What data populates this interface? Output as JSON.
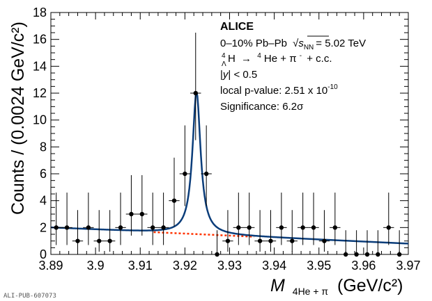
{
  "chart_data": {
    "type": "scatter",
    "xlabel_main": "M",
    "xlabel_sub": "4He + π",
    "xlabel_unit": "(GeV/c²)",
    "ylabel": "Counts / (0.0024 GeV/c²)",
    "xlim": [
      3.89,
      3.97
    ],
    "ylim": [
      0,
      18
    ],
    "x_ticks": [
      "3.89",
      "3.9",
      "3.91",
      "3.92",
      "3.93",
      "3.94",
      "3.95",
      "3.96",
      "3.97"
    ],
    "y_ticks": [
      "0",
      "2",
      "4",
      "6",
      "8",
      "10",
      "12",
      "14",
      "16",
      "18"
    ],
    "bin_half_width": 0.0012,
    "data_points": [
      {
        "x": 3.8912,
        "y": 2,
        "yerr_low": 1.3,
        "yerr_high": 2.6
      },
      {
        "x": 3.8936,
        "y": 2,
        "yerr_low": 1.3,
        "yerr_high": 2.6
      },
      {
        "x": 3.896,
        "y": 1,
        "yerr_low": 0.8,
        "yerr_high": 2.3
      },
      {
        "x": 3.8984,
        "y": 2,
        "yerr_low": 1.3,
        "yerr_high": 2.6
      },
      {
        "x": 3.9008,
        "y": 1,
        "yerr_low": 0.8,
        "yerr_high": 2.3
      },
      {
        "x": 3.9032,
        "y": 1,
        "yerr_low": 0.8,
        "yerr_high": 2.3
      },
      {
        "x": 3.9056,
        "y": 2,
        "yerr_low": 1.3,
        "yerr_high": 2.6
      },
      {
        "x": 3.908,
        "y": 3,
        "yerr_low": 1.6,
        "yerr_high": 2.9
      },
      {
        "x": 3.9104,
        "y": 3,
        "yerr_low": 1.6,
        "yerr_high": 2.9
      },
      {
        "x": 3.9128,
        "y": 2,
        "yerr_low": 1.3,
        "yerr_high": 2.6
      },
      {
        "x": 3.9152,
        "y": 2,
        "yerr_low": 1.3,
        "yerr_high": 2.6
      },
      {
        "x": 3.9176,
        "y": 4,
        "yerr_low": 1.9,
        "yerr_high": 3.2
      },
      {
        "x": 3.92,
        "y": 6,
        "yerr_low": 2.4,
        "yerr_high": 3.6
      },
      {
        "x": 3.9224,
        "y": 12,
        "yerr_low": 3.5,
        "yerr_high": 4.5
      },
      {
        "x": 3.9248,
        "y": 6,
        "yerr_low": 2.4,
        "yerr_high": 3.6
      },
      {
        "x": 3.9272,
        "y": 0,
        "yerr_low": 0,
        "yerr_high": 1.8
      },
      {
        "x": 3.9296,
        "y": 1,
        "yerr_low": 0.8,
        "yerr_high": 2.3
      },
      {
        "x": 3.932,
        "y": 2,
        "yerr_low": 1.3,
        "yerr_high": 2.6
      },
      {
        "x": 3.9344,
        "y": 2,
        "yerr_low": 1.3,
        "yerr_high": 2.6
      },
      {
        "x": 3.9368,
        "y": 1,
        "yerr_low": 0.8,
        "yerr_high": 2.3
      },
      {
        "x": 3.9392,
        "y": 1,
        "yerr_low": 0.8,
        "yerr_high": 2.3
      },
      {
        "x": 3.9416,
        "y": 2,
        "yerr_low": 1.3,
        "yerr_high": 2.6
      },
      {
        "x": 3.944,
        "y": 1,
        "yerr_low": 0.8,
        "yerr_high": 2.3
      },
      {
        "x": 3.9464,
        "y": 2,
        "yerr_low": 1.3,
        "yerr_high": 2.6
      },
      {
        "x": 3.9488,
        "y": 2,
        "yerr_low": 1.3,
        "yerr_high": 2.6
      },
      {
        "x": 3.9512,
        "y": 1,
        "yerr_low": 0.8,
        "yerr_high": 2.3
      },
      {
        "x": 3.9536,
        "y": 2,
        "yerr_low": 1.3,
        "yerr_high": 2.6
      },
      {
        "x": 3.956,
        "y": 0,
        "yerr_low": 0,
        "yerr_high": 1.8
      },
      {
        "x": 3.9584,
        "y": 0,
        "yerr_low": 0,
        "yerr_high": 1.8
      },
      {
        "x": 3.9608,
        "y": 0,
        "yerr_low": 0,
        "yerr_high": 1.8
      },
      {
        "x": 3.9632,
        "y": 0,
        "yerr_low": 0,
        "yerr_high": 1.8
      },
      {
        "x": 3.9656,
        "y": 2,
        "yerr_low": 1.3,
        "yerr_high": 2.6
      },
      {
        "x": 3.968,
        "y": 0,
        "yerr_low": 0,
        "yerr_high": 1.8
      }
    ],
    "fit": {
      "peak_mean": 3.9226,
      "peak_gamma": 0.0011,
      "peak_amplitude": 10.6,
      "background_at_xmin": 2.0,
      "background_at_xmax": 0.8,
      "fit_color": "#0b3d7a",
      "background_color": "#ff3300"
    },
    "legend": {
      "experiment": "ALICE",
      "collision": "0–10% Pb–Pb √s_NN = 5.02 TeV",
      "collision_prefix": "0–10% Pb–Pb",
      "sqrt_s_label": "s",
      "sqrt_s_sub": "NN",
      "sqrt_s_value": "= 5.02 TeV",
      "decay": "⁴ΛH → ⁴He + π⁻ + c.c.",
      "decay_mother_sup": "4",
      "decay_mother_sub": "Λ",
      "decay_mother": "H",
      "decay_arrow": "→",
      "decay_daughter_sup": "4",
      "decay_daughter": "He + π",
      "decay_pion_sup": "-",
      "decay_cc": "+ c.c.",
      "rapidity": "|y| < 0.5",
      "rapidity_y": "y",
      "rapidity_rest": "| < 0.5",
      "pvalue_prefix": "local p-value: 2.51 x 10",
      "pvalue_exp": "-10",
      "significance": "Significance: 6.2σ"
    }
  },
  "footer_note": "ALI-PUB-607073"
}
